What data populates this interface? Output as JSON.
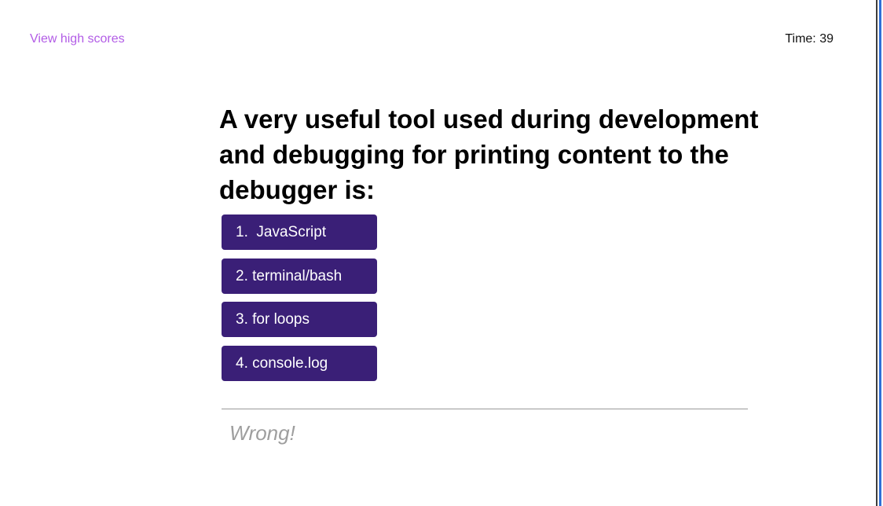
{
  "header": {
    "high_scores_label": "View high scores",
    "timer_text": "Time: 39"
  },
  "quiz": {
    "question": "A very useful tool used during development and debugging for printing content to the debugger is:",
    "choices": [
      {
        "label": "1.  JavaScript"
      },
      {
        "label": "2. terminal/bash"
      },
      {
        "label": "3. for loops"
      },
      {
        "label": "4. console.log"
      }
    ],
    "feedback": "Wrong!"
  },
  "colors": {
    "accent_link": "#b25ce6",
    "button_bg": "#3a1f77",
    "feedback_text": "#9e9e9e"
  }
}
